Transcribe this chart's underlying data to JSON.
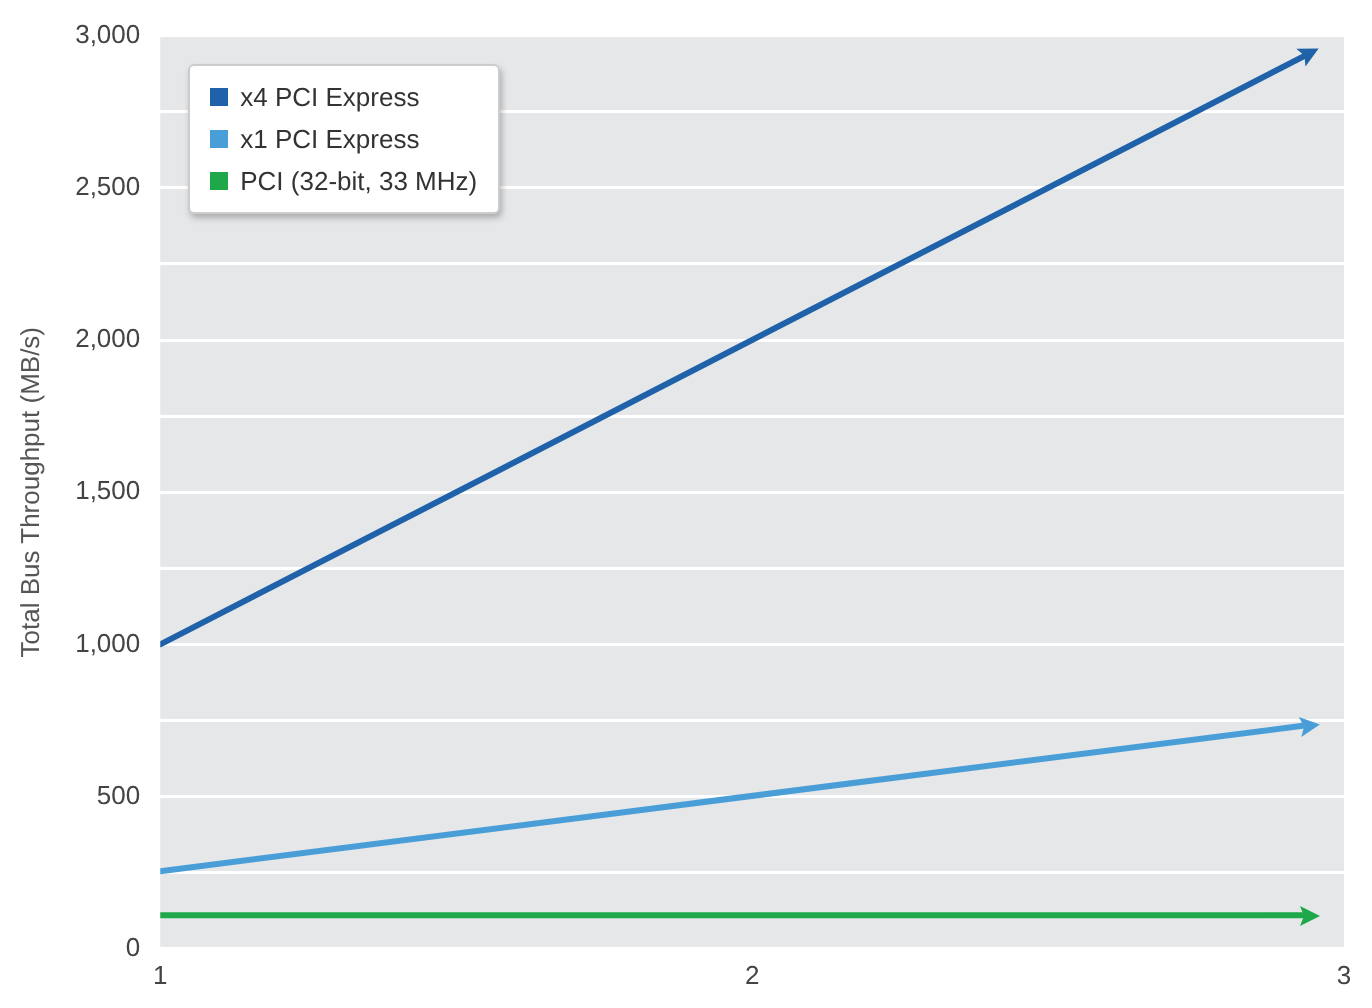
{
  "chart_data": {
    "type": "line",
    "ylabel": "Total Bus Throughput (MB/s)",
    "x": [
      1,
      2.94
    ],
    "series": [
      {
        "name": "x4 PCI Express",
        "color": "#1f62aa",
        "values": [
          1000,
          2940
        ]
      },
      {
        "name": "x1 PCI Express",
        "color": "#4a9ed8",
        "values": [
          255,
          735
        ]
      },
      {
        "name": "PCI (32-bit, 33 MHz)",
        "color": "#1fa84a",
        "values": [
          110,
          110
        ]
      }
    ],
    "xlim": [
      1,
      3
    ],
    "xticks": [
      1,
      2,
      3
    ],
    "ylim": [
      0,
      3000
    ],
    "yticks": [
      {
        "value": 0,
        "label": "0"
      },
      {
        "value": 250,
        "label": null
      },
      {
        "value": 500,
        "label": "500"
      },
      {
        "value": 750,
        "label": null
      },
      {
        "value": 1000,
        "label": "1,000"
      },
      {
        "value": 1250,
        "label": null
      },
      {
        "value": 1500,
        "label": "1,500"
      },
      {
        "value": 1750,
        "label": null
      },
      {
        "value": 2000,
        "label": "2,000"
      },
      {
        "value": 2250,
        "label": null
      },
      {
        "value": 2500,
        "label": "2,500"
      },
      {
        "value": 2750,
        "label": null
      },
      {
        "value": 3000,
        "label": "3,000"
      }
    ],
    "grid": "y",
    "legend": "top left",
    "line_style": "solid"
  }
}
